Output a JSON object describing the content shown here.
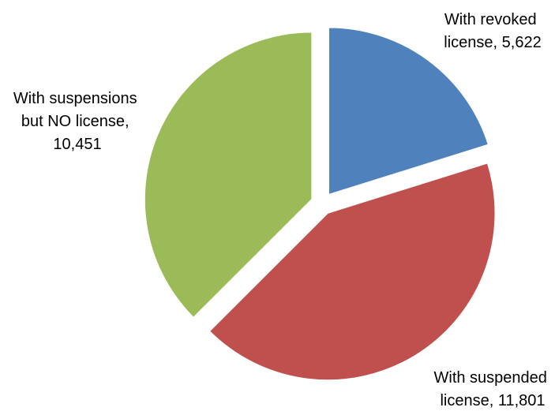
{
  "chart_data": {
    "type": "pie",
    "title": "",
    "slices": [
      {
        "category": "With revoked license",
        "value": 5622,
        "label_lines": [
          "With revoked",
          "license, 5,622"
        ],
        "color": "#4F81BD"
      },
      {
        "category": "With suspended license",
        "value": 11801,
        "label_lines": [
          "With suspended",
          "license, 11,801"
        ],
        "color": "#C0504D"
      },
      {
        "category": "With suspensions but NO license",
        "value": 10451,
        "label_lines": [
          "With suspensions",
          "but NO license,",
          "10,451"
        ],
        "color": "#9BBB59"
      }
    ],
    "exploded": true,
    "legend": "none"
  }
}
